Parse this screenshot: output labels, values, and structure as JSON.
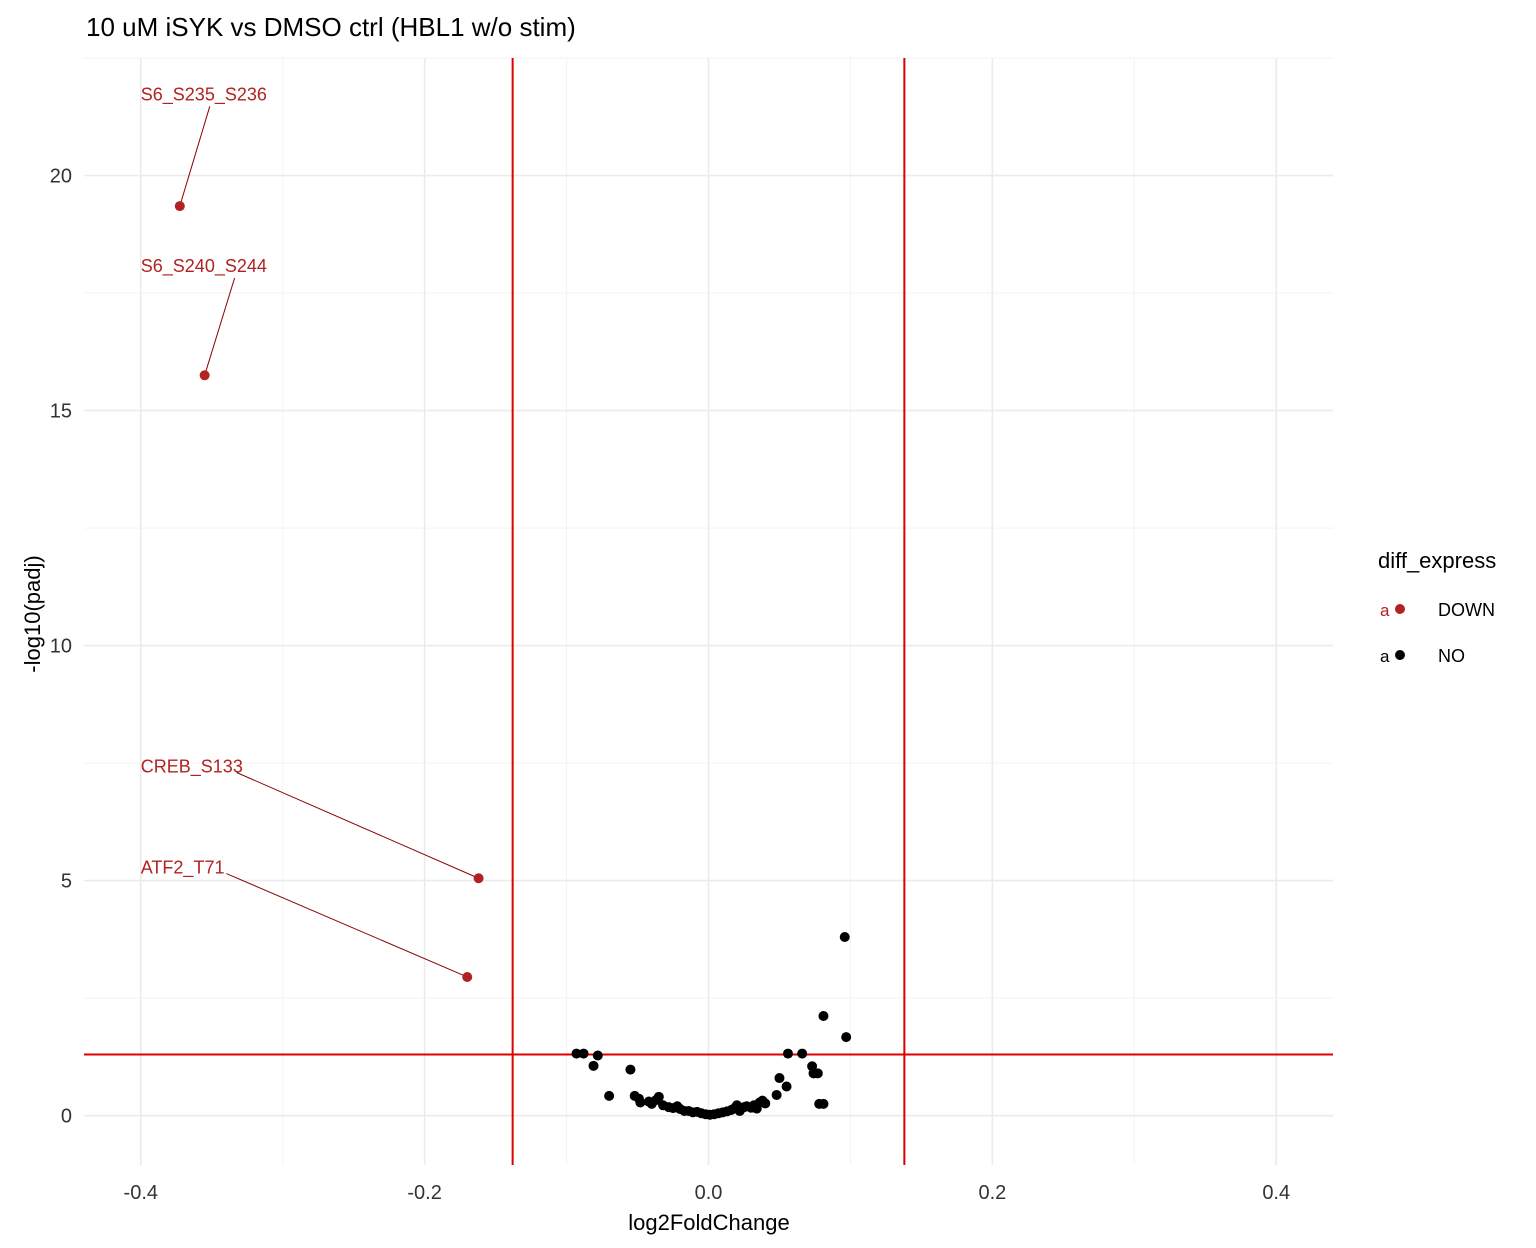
{
  "chart_data": {
    "type": "scatter",
    "title": "10 uM iSYK vs DMSO ctrl (HBL1 w/o stim)",
    "xlabel": "log2FoldChange",
    "ylabel": "-log10(padj)",
    "xlim": [
      -0.44,
      0.44
    ],
    "ylim": [
      -1.05,
      22.5
    ],
    "x_ticks": [
      -0.4,
      -0.2,
      0.0,
      0.2,
      0.4
    ],
    "x_tick_labels": [
      "-0.4",
      "-0.2",
      "0.0",
      "0.2",
      "0.4"
    ],
    "y_ticks": [
      0,
      5,
      10,
      15,
      20
    ],
    "y_tick_labels": [
      "0",
      "5",
      "10",
      "15",
      "20"
    ],
    "grid": true,
    "threshold_lines": {
      "color": "#dd0000",
      "vertical_x": [
        -0.138,
        0.138
      ],
      "horizontal_y": 1.3
    },
    "legend": {
      "title": "diff_express",
      "position": "right",
      "entries": [
        {
          "label": "DOWN",
          "key_text": "a",
          "color": "#b22222"
        },
        {
          "label": "NO",
          "key_text": "a",
          "color": "#000000"
        }
      ]
    },
    "series": [
      {
        "name": "DOWN",
        "color": "#b22222",
        "points": [
          {
            "x": -0.3725,
            "y": 19.35,
            "label": "S6_S235_S236",
            "label_x": -0.4,
            "label_y": 21.6
          },
          {
            "x": -0.355,
            "y": 15.75,
            "label": "S6_S240_S244",
            "label_x": -0.4,
            "label_y": 17.95
          },
          {
            "x": -0.162,
            "y": 5.05,
            "label": "CREB_S133",
            "label_x": -0.4,
            "label_y": 7.3
          },
          {
            "x": -0.17,
            "y": 2.95,
            "label": "ATF2_T71",
            "label_x": -0.4,
            "label_y": 5.15
          }
        ]
      },
      {
        "name": "NO",
        "color": "#000000",
        "points": [
          {
            "x": -0.093,
            "y": 1.32
          },
          {
            "x": -0.088,
            "y": 1.32
          },
          {
            "x": -0.078,
            "y": 1.28
          },
          {
            "x": -0.081,
            "y": 1.06
          },
          {
            "x": -0.055,
            "y": 0.98
          },
          {
            "x": -0.07,
            "y": 0.42
          },
          {
            "x": -0.052,
            "y": 0.42
          },
          {
            "x": -0.049,
            "y": 0.36
          },
          {
            "x": -0.048,
            "y": 0.28
          },
          {
            "x": -0.042,
            "y": 0.3
          },
          {
            "x": -0.04,
            "y": 0.25
          },
          {
            "x": -0.037,
            "y": 0.33
          },
          {
            "x": -0.035,
            "y": 0.4
          },
          {
            "x": -0.032,
            "y": 0.22
          },
          {
            "x": -0.028,
            "y": 0.18
          },
          {
            "x": -0.025,
            "y": 0.16
          },
          {
            "x": -0.022,
            "y": 0.2
          },
          {
            "x": -0.02,
            "y": 0.14
          },
          {
            "x": -0.017,
            "y": 0.1
          },
          {
            "x": -0.014,
            "y": 0.1
          },
          {
            "x": -0.011,
            "y": 0.07
          },
          {
            "x": -0.008,
            "y": 0.08
          },
          {
            "x": -0.005,
            "y": 0.05
          },
          {
            "x": -0.002,
            "y": 0.03
          },
          {
            "x": 0.001,
            "y": 0.02
          },
          {
            "x": 0.004,
            "y": 0.03
          },
          {
            "x": 0.007,
            "y": 0.05
          },
          {
            "x": 0.01,
            "y": 0.07
          },
          {
            "x": 0.013,
            "y": 0.09
          },
          {
            "x": 0.016,
            "y": 0.12
          },
          {
            "x": 0.018,
            "y": 0.15
          },
          {
            "x": 0.02,
            "y": 0.22
          },
          {
            "x": 0.022,
            "y": 0.1
          },
          {
            "x": 0.025,
            "y": 0.18
          },
          {
            "x": 0.027,
            "y": 0.2
          },
          {
            "x": 0.03,
            "y": 0.17
          },
          {
            "x": 0.032,
            "y": 0.22
          },
          {
            "x": 0.034,
            "y": 0.15
          },
          {
            "x": 0.036,
            "y": 0.28
          },
          {
            "x": 0.038,
            "y": 0.32
          },
          {
            "x": 0.04,
            "y": 0.26
          },
          {
            "x": 0.048,
            "y": 0.44
          },
          {
            "x": 0.05,
            "y": 0.8
          },
          {
            "x": 0.055,
            "y": 0.62
          },
          {
            "x": 0.056,
            "y": 1.32
          },
          {
            "x": 0.066,
            "y": 1.32
          },
          {
            "x": 0.073,
            "y": 1.05
          },
          {
            "x": 0.074,
            "y": 0.9
          },
          {
            "x": 0.077,
            "y": 0.9
          },
          {
            "x": 0.078,
            "y": 0.25
          },
          {
            "x": 0.081,
            "y": 0.25
          },
          {
            "x": 0.081,
            "y": 2.12
          },
          {
            "x": 0.097,
            "y": 1.67
          },
          {
            "x": 0.096,
            "y": 3.8
          }
        ]
      }
    ]
  }
}
